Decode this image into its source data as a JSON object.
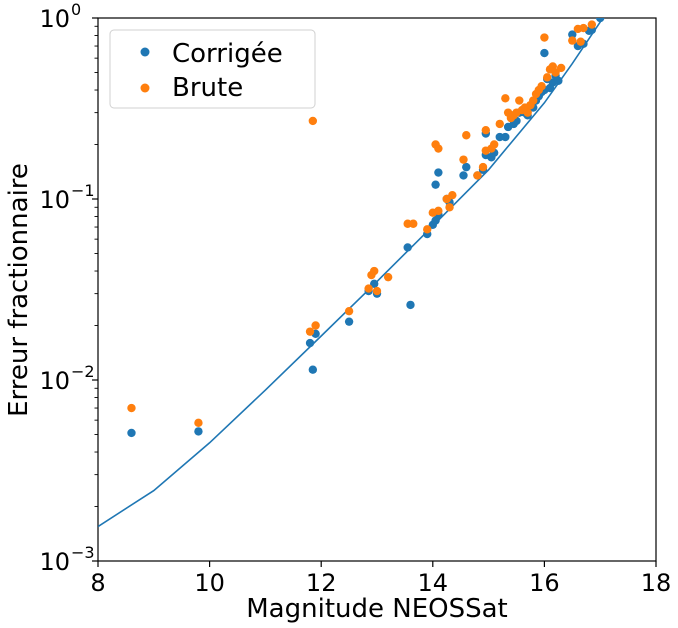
{
  "chart_data": {
    "type": "scatter",
    "xlabel": "Magnitude NEOSSat",
    "ylabel": "Erreur fractionnaire",
    "xlim": [
      8,
      18
    ],
    "ylim": [
      0.001,
      1
    ],
    "yscale": "log",
    "grid": false,
    "legend_position": "top-left",
    "x_ticks": [
      {
        "value": 8,
        "label": "8"
      },
      {
        "value": 10,
        "label": "10"
      },
      {
        "value": 12,
        "label": "12"
      },
      {
        "value": 14,
        "label": "14"
      },
      {
        "value": 16,
        "label": "16"
      },
      {
        "value": 18,
        "label": "18"
      }
    ],
    "y_ticks": [
      {
        "value": 0.001,
        "base": "10",
        "exp": "−3"
      },
      {
        "value": 0.01,
        "base": "10",
        "exp": "−2"
      },
      {
        "value": 0.1,
        "base": "10",
        "exp": "−1"
      },
      {
        "value": 1,
        "base": "10",
        "exp": "0"
      }
    ],
    "series": [
      {
        "name": "Corrigée",
        "color": "#1f77b4",
        "points": [
          [
            8.6,
            0.0051
          ],
          [
            9.8,
            0.0052
          ],
          [
            11.8,
            0.016
          ],
          [
            11.85,
            0.0114
          ],
          [
            11.9,
            0.018
          ],
          [
            12.5,
            0.021
          ],
          [
            12.85,
            0.031
          ],
          [
            12.95,
            0.034
          ],
          [
            13.0,
            0.03
          ],
          [
            13.55,
            0.054
          ],
          [
            13.6,
            0.026
          ],
          [
            13.9,
            0.064
          ],
          [
            14.0,
            0.072
          ],
          [
            14.05,
            0.076
          ],
          [
            14.05,
            0.12
          ],
          [
            14.1,
            0.082
          ],
          [
            14.1,
            0.14
          ],
          [
            14.25,
            0.1
          ],
          [
            14.3,
            0.096
          ],
          [
            14.55,
            0.135
          ],
          [
            14.6,
            0.15
          ],
          [
            14.8,
            0.135
          ],
          [
            14.9,
            0.145
          ],
          [
            14.95,
            0.175
          ],
          [
            14.95,
            0.23
          ],
          [
            15.05,
            0.17
          ],
          [
            15.1,
            0.18
          ],
          [
            15.2,
            0.22
          ],
          [
            15.3,
            0.22
          ],
          [
            15.35,
            0.25
          ],
          [
            15.4,
            0.29
          ],
          [
            15.45,
            0.26
          ],
          [
            15.5,
            0.27
          ],
          [
            15.55,
            0.3
          ],
          [
            15.65,
            0.3
          ],
          [
            15.7,
            0.29
          ],
          [
            15.75,
            0.32
          ],
          [
            15.8,
            0.32
          ],
          [
            15.85,
            0.35
          ],
          [
            15.9,
            0.37
          ],
          [
            15.95,
            0.39
          ],
          [
            16.0,
            0.4
          ],
          [
            16.0,
            0.64
          ],
          [
            16.05,
            0.46
          ],
          [
            16.1,
            0.41
          ],
          [
            16.15,
            0.44
          ],
          [
            16.2,
            0.48
          ],
          [
            16.25,
            0.45
          ],
          [
            16.5,
            0.81
          ],
          [
            16.6,
            0.7
          ],
          [
            16.7,
            0.72
          ],
          [
            16.8,
            0.85
          ],
          [
            16.85,
            0.86
          ],
          [
            17.0,
            1.0
          ]
        ]
      },
      {
        "name": "Brute",
        "color": "#ff7f0e",
        "points": [
          [
            8.6,
            0.007
          ],
          [
            9.8,
            0.0058
          ],
          [
            11.8,
            0.0185
          ],
          [
            11.85,
            0.27
          ],
          [
            11.9,
            0.02
          ],
          [
            12.5,
            0.024
          ],
          [
            12.85,
            0.032
          ],
          [
            12.9,
            0.038
          ],
          [
            12.95,
            0.04
          ],
          [
            13.0,
            0.031
          ],
          [
            13.2,
            0.037
          ],
          [
            13.55,
            0.073
          ],
          [
            13.65,
            0.073
          ],
          [
            13.9,
            0.068
          ],
          [
            14.0,
            0.084
          ],
          [
            14.05,
            0.2
          ],
          [
            14.1,
            0.19
          ],
          [
            14.1,
            0.086
          ],
          [
            14.25,
            0.1
          ],
          [
            14.3,
            0.09
          ],
          [
            14.35,
            0.105
          ],
          [
            14.55,
            0.165
          ],
          [
            14.6,
            0.225
          ],
          [
            14.8,
            0.135
          ],
          [
            14.9,
            0.15
          ],
          [
            14.95,
            0.185
          ],
          [
            14.95,
            0.24
          ],
          [
            15.05,
            0.19
          ],
          [
            15.1,
            0.2
          ],
          [
            15.2,
            0.26
          ],
          [
            15.3,
            0.36
          ],
          [
            15.35,
            0.3
          ],
          [
            15.4,
            0.28
          ],
          [
            15.45,
            0.29
          ],
          [
            15.5,
            0.3
          ],
          [
            15.55,
            0.35
          ],
          [
            15.6,
            0.31
          ],
          [
            15.65,
            0.32
          ],
          [
            15.7,
            0.3
          ],
          [
            15.75,
            0.33
          ],
          [
            15.8,
            0.35
          ],
          [
            15.85,
            0.38
          ],
          [
            15.9,
            0.4
          ],
          [
            15.95,
            0.42
          ],
          [
            16.0,
            0.78
          ],
          [
            16.05,
            0.47
          ],
          [
            16.1,
            0.52
          ],
          [
            16.15,
            0.54
          ],
          [
            16.2,
            0.5
          ],
          [
            16.3,
            0.53
          ],
          [
            16.5,
            0.75
          ],
          [
            16.6,
            0.87
          ],
          [
            16.65,
            0.74
          ],
          [
            16.7,
            0.88
          ],
          [
            16.85,
            0.92
          ]
        ]
      }
    ],
    "curve": {
      "color": "#1f77b4",
      "points": [
        [
          8.0,
          0.00155
        ],
        [
          9.0,
          0.00245
        ],
        [
          10.0,
          0.0045
        ],
        [
          11.0,
          0.0088
        ],
        [
          12.0,
          0.0175
        ],
        [
          13.0,
          0.035
        ],
        [
          14.0,
          0.071
        ],
        [
          15.0,
          0.145
        ],
        [
          16.0,
          0.34
        ],
        [
          16.5,
          0.56
        ],
        [
          17.0,
          0.95
        ],
        [
          17.02,
          1.0
        ]
      ]
    }
  }
}
